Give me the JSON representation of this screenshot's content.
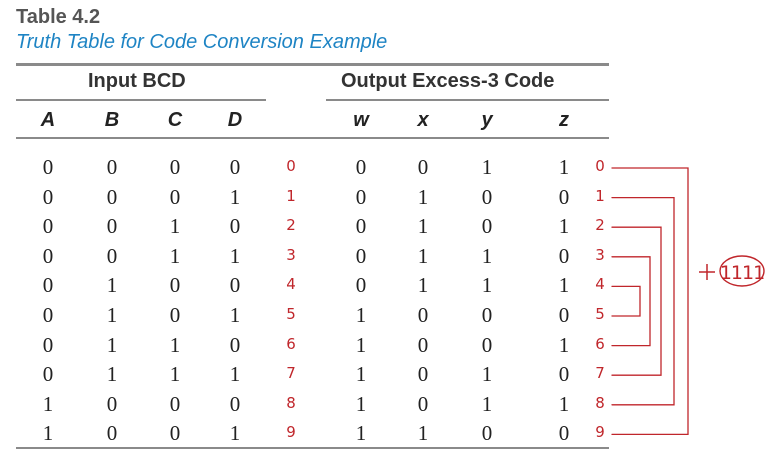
{
  "table": {
    "label": "Table 4.2",
    "caption": "Truth Table for Code Conversion Example",
    "input_group": "Input BCD",
    "output_group": "Output Excess-3 Code",
    "input_columns": [
      "A",
      "B",
      "C",
      "D"
    ],
    "output_columns": [
      "w",
      "x",
      "y",
      "z"
    ],
    "rows": [
      {
        "inputs": [
          "0",
          "0",
          "0",
          "0"
        ],
        "outputs": [
          "0",
          "0",
          "1",
          "1"
        ]
      },
      {
        "inputs": [
          "0",
          "0",
          "0",
          "1"
        ],
        "outputs": [
          "0",
          "1",
          "0",
          "0"
        ]
      },
      {
        "inputs": [
          "0",
          "0",
          "1",
          "0"
        ],
        "outputs": [
          "0",
          "1",
          "0",
          "1"
        ]
      },
      {
        "inputs": [
          "0",
          "0",
          "1",
          "1"
        ],
        "outputs": [
          "0",
          "1",
          "1",
          "0"
        ]
      },
      {
        "inputs": [
          "0",
          "1",
          "0",
          "0"
        ],
        "outputs": [
          "0",
          "1",
          "1",
          "1"
        ]
      },
      {
        "inputs": [
          "0",
          "1",
          "0",
          "1"
        ],
        "outputs": [
          "1",
          "0",
          "0",
          "0"
        ]
      },
      {
        "inputs": [
          "0",
          "1",
          "1",
          "0"
        ],
        "outputs": [
          "1",
          "0",
          "0",
          "1"
        ]
      },
      {
        "inputs": [
          "0",
          "1",
          "1",
          "1"
        ],
        "outputs": [
          "1",
          "0",
          "1",
          "0"
        ]
      },
      {
        "inputs": [
          "1",
          "0",
          "0",
          "0"
        ],
        "outputs": [
          "1",
          "0",
          "1",
          "1"
        ]
      },
      {
        "inputs": [
          "1",
          "0",
          "0",
          "1"
        ],
        "outputs": [
          "1",
          "1",
          "0",
          "0"
        ]
      }
    ]
  },
  "annotations": {
    "input_decimals": [
      "0",
      "1",
      "2",
      "3",
      "4",
      "5",
      "6",
      "7",
      "8",
      "9"
    ],
    "output_decimals": [
      "0",
      "1",
      "2",
      "3",
      "4",
      "5",
      "6",
      "7",
      "8",
      "9"
    ],
    "complement_symbol": "+",
    "complement_value": "1111",
    "ink_color": "#c0262b"
  }
}
